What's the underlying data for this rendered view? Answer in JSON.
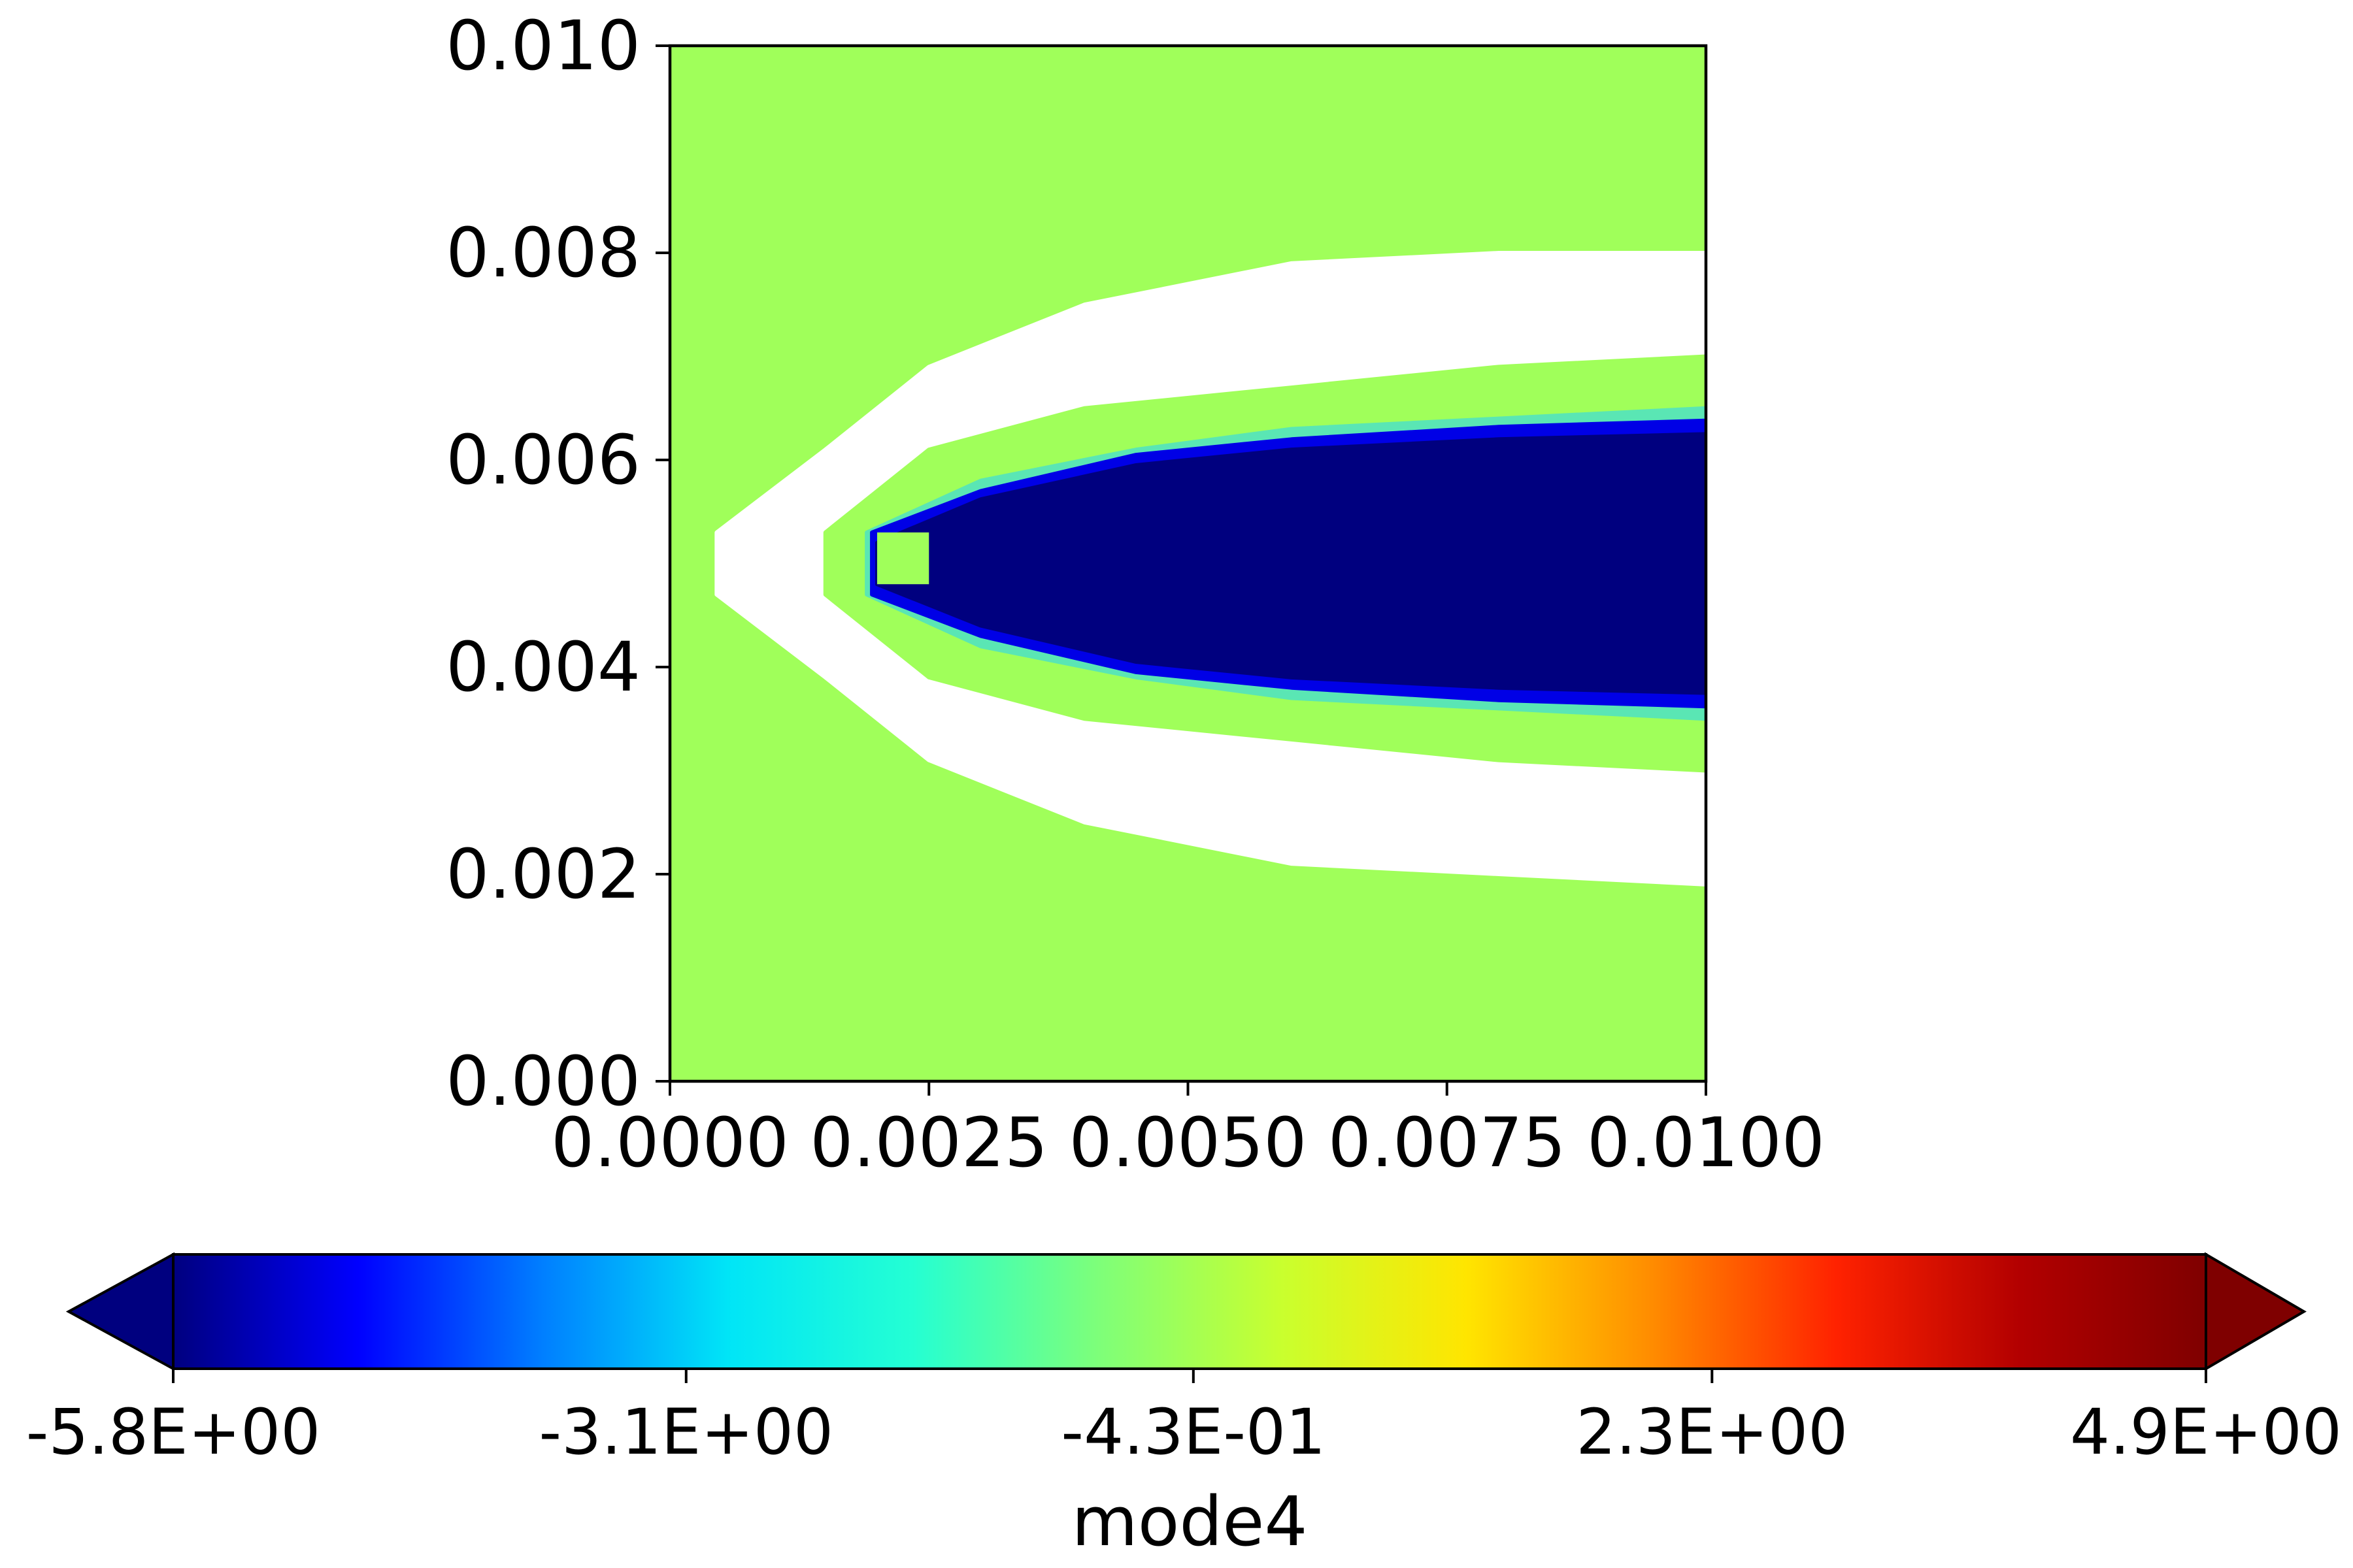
{
  "chart_data": {
    "type": "heatmap",
    "title": "",
    "xlabel": "",
    "ylabel": "",
    "xlim": [
      0.0,
      0.01
    ],
    "ylim": [
      0.0,
      0.01
    ],
    "x_ticks": [
      0.0,
      0.0025,
      0.005,
      0.0075,
      0.01
    ],
    "x_tick_labels": [
      "0.0000",
      "0.0025",
      "0.0050",
      "0.0075",
      "0.0100"
    ],
    "y_ticks": [
      0.0,
      0.002,
      0.004,
      0.006,
      0.008,
      0.01
    ],
    "y_tick_labels": [
      "0.000",
      "0.002",
      "0.004",
      "0.006",
      "0.008",
      "0.010"
    ],
    "colormap": "jet",
    "colorbar": {
      "label": "mode4",
      "orientation": "horizontal",
      "extend": "both",
      "vmin": -5.8,
      "vmax": 4.9,
      "ticks": [
        -5.8,
        -3.1,
        -0.43,
        2.3,
        4.9
      ],
      "tick_labels": [
        "-5.8E+00",
        "-3.1E+00",
        "-4.3E-01",
        "2.3E+00",
        "4.9E+00"
      ],
      "colors": [
        "#00007f",
        "#0000ff",
        "#007fff",
        "#00e5f7",
        "#24ffd3",
        "#7dff7a",
        "#c9ff2e",
        "#ffe500",
        "#ff8c00",
        "#ff2200",
        "#b20000",
        "#7f0000"
      ]
    },
    "field": {
      "background_value": 0.0,
      "background_color": "#a0ff5a",
      "obstacle": {
        "x": [
          0.002,
          0.0025
        ],
        "y": [
          0.0048,
          0.0053
        ],
        "color": "#a0ff5a"
      },
      "outer_band_color": "#ffffff",
      "wake_core_value": -5.8,
      "wake_core_color": "#00007f",
      "wake_edge_colors": [
        "#0000d0",
        "#0050ff",
        "#00c8ff"
      ]
    },
    "regions": [
      {
        "name": "outer-white-band",
        "color": "#ffffff",
        "points": [
          [
            0.01,
            0.008
          ],
          [
            0.008,
            0.008
          ],
          [
            0.006,
            0.0079
          ],
          [
            0.004,
            0.0075
          ],
          [
            0.0025,
            0.0069
          ],
          [
            0.0015,
            0.0061
          ],
          [
            0.00045,
            0.0053
          ],
          [
            0.00045,
            0.0047
          ],
          [
            0.0015,
            0.0039
          ],
          [
            0.0025,
            0.0031
          ],
          [
            0.004,
            0.0025
          ],
          [
            0.006,
            0.0021
          ],
          [
            0.008,
            0.002
          ],
          [
            0.01,
            0.0019
          ]
        ]
      },
      {
        "name": "inner-green-gap",
        "color": "#a0ff5a",
        "points": [
          [
            0.01,
            0.007
          ],
          [
            0.008,
            0.0069
          ],
          [
            0.006,
            0.0067
          ],
          [
            0.004,
            0.0065
          ],
          [
            0.0025,
            0.0061
          ],
          [
            0.0015,
            0.0053
          ],
          [
            0.0015,
            0.0047
          ],
          [
            0.0025,
            0.0039
          ],
          [
            0.004,
            0.0035
          ],
          [
            0.006,
            0.0033
          ],
          [
            0.008,
            0.0031
          ],
          [
            0.01,
            0.003
          ]
        ]
      },
      {
        "name": "wake-halo",
        "color": "#5ae6b4",
        "points": [
          [
            0.01,
            0.0065
          ],
          [
            0.008,
            0.0064
          ],
          [
            0.006,
            0.0063
          ],
          [
            0.0045,
            0.0061
          ],
          [
            0.003,
            0.0058
          ],
          [
            0.0019,
            0.0053
          ],
          [
            0.0019,
            0.0047
          ],
          [
            0.003,
            0.0042
          ],
          [
            0.0045,
            0.0039
          ],
          [
            0.006,
            0.0037
          ],
          [
            0.008,
            0.0036
          ],
          [
            0.01,
            0.0035
          ]
        ]
      },
      {
        "name": "wake-edge",
        "color": "#0000e6",
        "points": [
          [
            0.01,
            0.00638
          ],
          [
            0.008,
            0.00632
          ],
          [
            0.006,
            0.0062
          ],
          [
            0.0045,
            0.00605
          ],
          [
            0.003,
            0.0057
          ],
          [
            0.00195,
            0.0053
          ],
          [
            0.00195,
            0.0047
          ],
          [
            0.003,
            0.0043
          ],
          [
            0.0045,
            0.00395
          ],
          [
            0.006,
            0.0038
          ],
          [
            0.008,
            0.00368
          ],
          [
            0.01,
            0.00362
          ]
        ]
      },
      {
        "name": "wake-core",
        "color": "#00007f",
        "points": [
          [
            0.01,
            0.00625
          ],
          [
            0.008,
            0.0062
          ],
          [
            0.006,
            0.0061
          ],
          [
            0.0045,
            0.00595
          ],
          [
            0.003,
            0.00562
          ],
          [
            0.002,
            0.0052
          ],
          [
            0.002,
            0.0048
          ],
          [
            0.003,
            0.0044
          ],
          [
            0.0045,
            0.00405
          ],
          [
            0.006,
            0.0039
          ],
          [
            0.008,
            0.0038
          ],
          [
            0.01,
            0.00375
          ]
        ]
      }
    ]
  }
}
